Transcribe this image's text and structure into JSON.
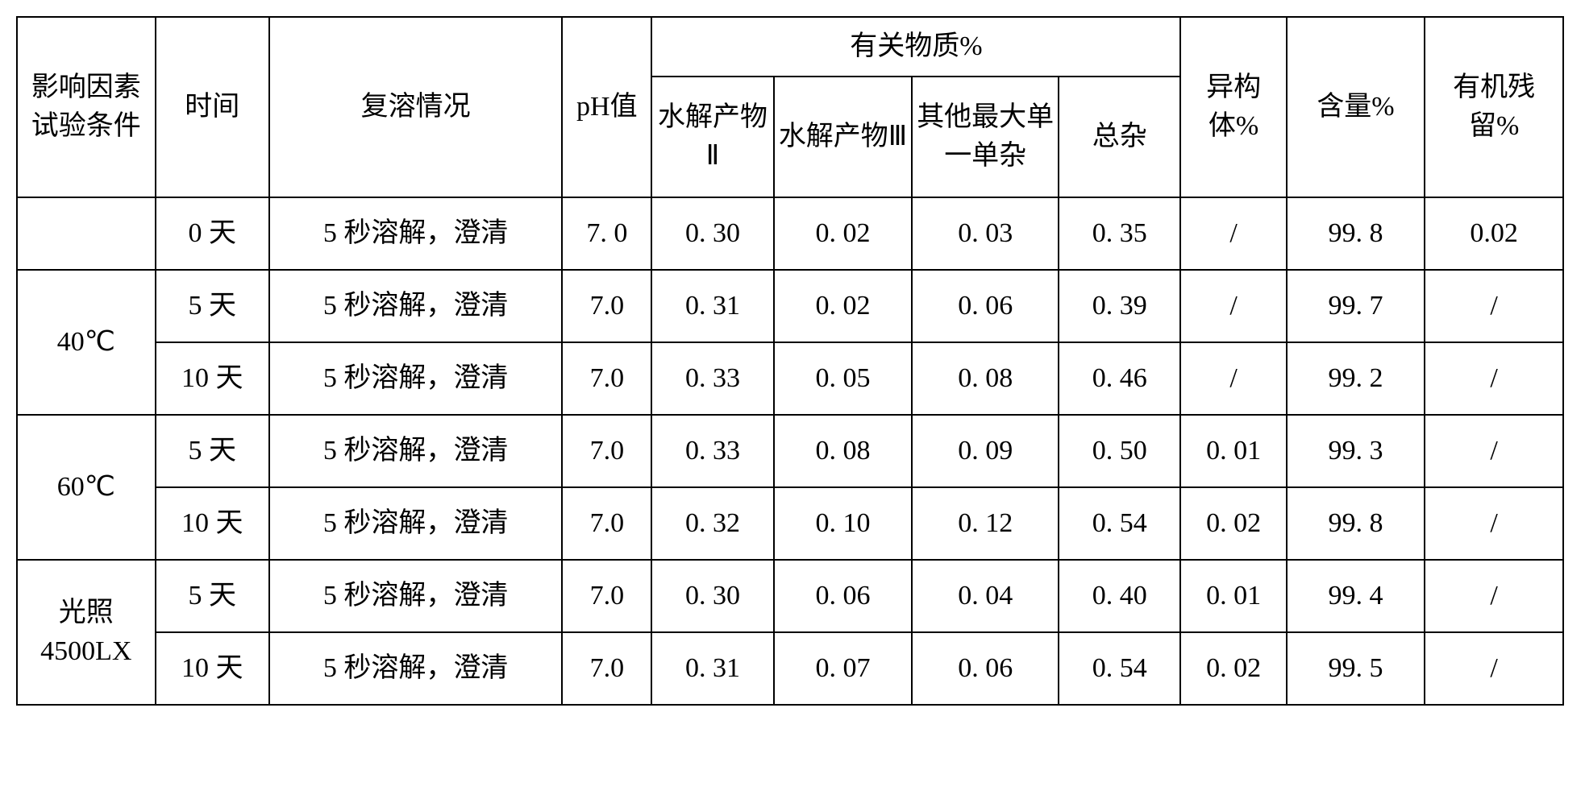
{
  "table": {
    "type": "table",
    "border_color": "#000000",
    "background_color": "#ffffff",
    "font_family": "SimSun",
    "font_size_pt": 26,
    "header": {
      "condition": "影响因素试验条件",
      "time": "时间",
      "redissolve": "复溶情况",
      "ph": "pH值",
      "related_group": "有关物质%",
      "sub_hydrolysis2": "水解产物Ⅱ",
      "sub_hydrolysis3": "水解产物Ⅲ",
      "sub_other_max": "其他最大单一单杂",
      "sub_total": "总杂",
      "isomer": "异构体%",
      "assay": "含量%",
      "residue": "有机残留%"
    },
    "conditions": {
      "c0": "",
      "c40": "40℃",
      "c60": "60℃",
      "clight": "光照4500LX"
    },
    "rows": [
      {
        "cond_key": "c0",
        "time": "0 天",
        "redissolve": "5 秒溶解，澄清",
        "ph": "7. 0",
        "h2": "0. 30",
        "h3": "0. 02",
        "other": "0. 03",
        "total": "0. 35",
        "iso": "/",
        "assay": "99. 8",
        "residue": "0.02"
      },
      {
        "cond_key": "c40",
        "time": "5 天",
        "redissolve": "5 秒溶解，澄清",
        "ph": "7.0",
        "h2": "0. 31",
        "h3": "0. 02",
        "other": "0. 06",
        "total": "0. 39",
        "iso": "/",
        "assay": "99. 7",
        "residue": "/"
      },
      {
        "cond_key": "c40",
        "time": "10 天",
        "redissolve": "5 秒溶解，澄清",
        "ph": "7.0",
        "h2": "0. 33",
        "h3": "0. 05",
        "other": "0. 08",
        "total": "0. 46",
        "iso": "/",
        "assay": "99. 2",
        "residue": "/"
      },
      {
        "cond_key": "c60",
        "time": "5 天",
        "redissolve": "5 秒溶解，澄清",
        "ph": "7.0",
        "h2": "0. 33",
        "h3": "0. 08",
        "other": "0. 09",
        "total": "0. 50",
        "iso": "0. 01",
        "assay": "99. 3",
        "residue": "/"
      },
      {
        "cond_key": "c60",
        "time": "10 天",
        "redissolve": "5 秒溶解，澄清",
        "ph": "7.0",
        "h2": "0. 32",
        "h3": "0. 10",
        "other": "0. 12",
        "total": "0. 54",
        "iso": "0. 02",
        "assay": "99. 8",
        "residue": "/"
      },
      {
        "cond_key": "clight",
        "time": "5 天",
        "redissolve": "5 秒溶解，澄清",
        "ph": "7.0",
        "h2": "0. 30",
        "h3": "0. 06",
        "other": "0. 04",
        "total": "0. 40",
        "iso": "0. 01",
        "assay": "99. 4",
        "residue": "/"
      },
      {
        "cond_key": "clight",
        "time": "10 天",
        "redissolve": "5 秒溶解，澄清",
        "ph": "7.0",
        "h2": "0. 31",
        "h3": "0. 07",
        "other": "0. 06",
        "total": "0. 54",
        "iso": "0. 02",
        "assay": "99. 5",
        "residue": "/"
      }
    ]
  }
}
